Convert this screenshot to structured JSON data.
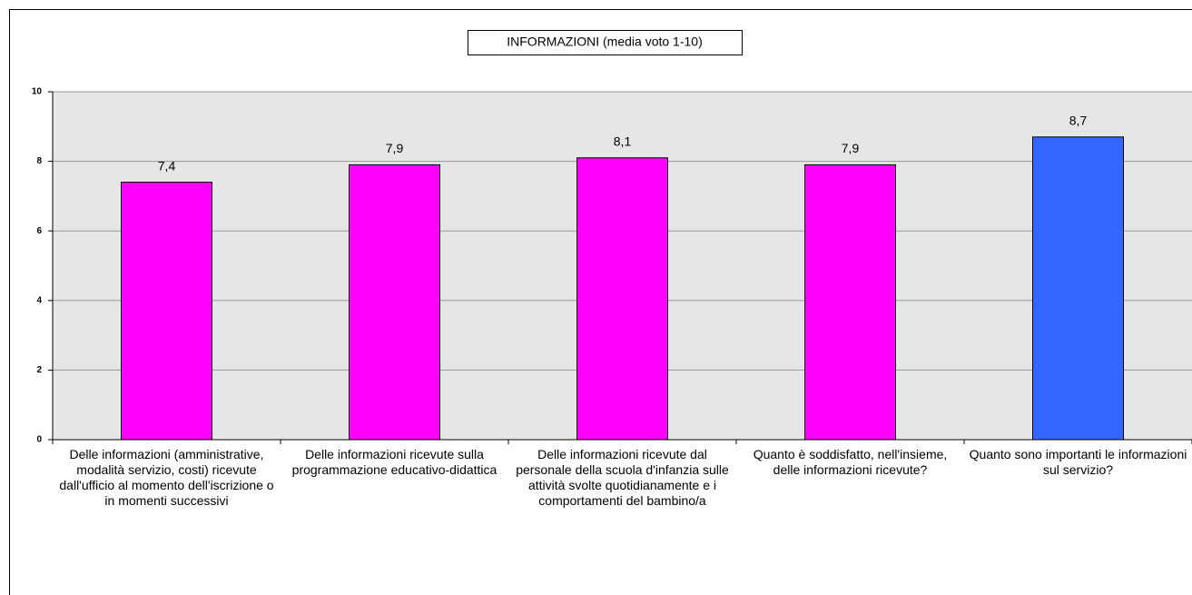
{
  "chart_data": {
    "type": "bar",
    "title": "INFORMAZIONI (media voto 1-10)",
    "categories": [
      "Delle informazioni (amministrative, modalità servizio, costi) ricevute dall'ufficio al momento dell'iscrizione o in momenti successivi",
      "Delle informazioni ricevute sulla programmazione educativo-didattica",
      "Delle informazioni ricevute dal personale della scuola d'infanzia sulle attività svolte quotidianamente e i comportamenti del bambino/a",
      "Quanto è soddisfatto, nell'insieme, delle informazioni ricevute?",
      "Quanto sono importanti le informazioni sul servizio?"
    ],
    "values": [
      7.4,
      7.9,
      8.1,
      7.9,
      8.7
    ],
    "value_labels": [
      "7,4",
      "7,9",
      "8,1",
      "7,9",
      "8,7"
    ],
    "colors": [
      "#ff00ff",
      "#ff00ff",
      "#ff00ff",
      "#ff00ff",
      "#3366ff"
    ],
    "ylim": [
      0,
      10
    ],
    "yticks": [
      0,
      2,
      4,
      6,
      8,
      10
    ],
    "grid": true
  }
}
